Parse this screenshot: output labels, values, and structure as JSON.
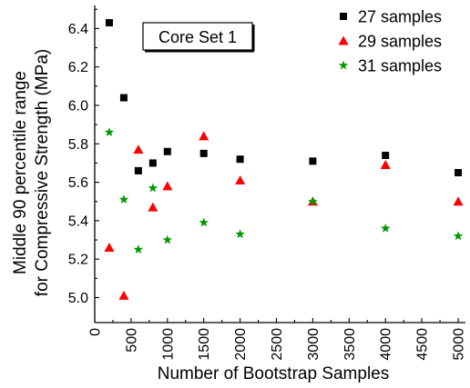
{
  "chart_data": {
    "type": "scatter",
    "xlabel": "Number of Bootstrap Samples",
    "ylabel_lines": [
      "Middle 90 percentile range",
      "for Compressive Strength (MPa)"
    ],
    "annotation": "Core Set 1",
    "xlim": [
      0,
      5100
    ],
    "ylim": [
      4.87,
      6.52
    ],
    "x_ticks": [
      "0",
      "500",
      "1000",
      "1500",
      "2000",
      "2500",
      "3000",
      "3500",
      "4000",
      "4500",
      "5000"
    ],
    "y_ticks": [
      "5.0",
      "5.2",
      "5.4",
      "5.6",
      "5.8",
      "6.0",
      "6.2",
      "6.4"
    ],
    "legend_position": "top-right",
    "series": [
      {
        "name": "27 samples",
        "marker": "square",
        "color": "#000000",
        "points": [
          {
            "x": 200,
            "y": 6.43
          },
          {
            "x": 400,
            "y": 6.04
          },
          {
            "x": 600,
            "y": 5.66
          },
          {
            "x": 800,
            "y": 5.7
          },
          {
            "x": 1000,
            "y": 5.76
          },
          {
            "x": 1500,
            "y": 5.75
          },
          {
            "x": 2000,
            "y": 5.72
          },
          {
            "x": 3000,
            "y": 5.71
          },
          {
            "x": 4000,
            "y": 5.74
          },
          {
            "x": 5000,
            "y": 5.65
          }
        ]
      },
      {
        "name": "29 samples",
        "marker": "triangle",
        "color": "#ff0000",
        "points": [
          {
            "x": 200,
            "y": 5.26
          },
          {
            "x": 400,
            "y": 5.01
          },
          {
            "x": 600,
            "y": 5.77
          },
          {
            "x": 800,
            "y": 5.47
          },
          {
            "x": 1000,
            "y": 5.58
          },
          {
            "x": 1500,
            "y": 5.84
          },
          {
            "x": 2000,
            "y": 5.61
          },
          {
            "x": 3000,
            "y": 5.5
          },
          {
            "x": 4000,
            "y": 5.69
          },
          {
            "x": 5000,
            "y": 5.5
          }
        ]
      },
      {
        "name": "31 samples",
        "marker": "star",
        "color": "#009900",
        "points": [
          {
            "x": 200,
            "y": 5.86
          },
          {
            "x": 400,
            "y": 5.51
          },
          {
            "x": 600,
            "y": 5.25
          },
          {
            "x": 800,
            "y": 5.57
          },
          {
            "x": 1000,
            "y": 5.3
          },
          {
            "x": 1500,
            "y": 5.39
          },
          {
            "x": 2000,
            "y": 5.33
          },
          {
            "x": 3000,
            "y": 5.5
          },
          {
            "x": 4000,
            "y": 5.36
          },
          {
            "x": 5000,
            "y": 5.32
          }
        ]
      }
    ]
  }
}
